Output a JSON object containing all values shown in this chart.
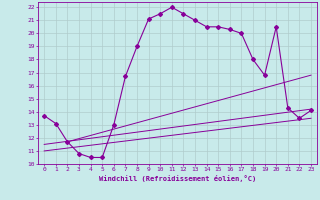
{
  "xlabel": "Windchill (Refroidissement éolien,°C)",
  "background_color": "#c8eaea",
  "grid_color": "#b0cccc",
  "line_color": "#880099",
  "xlim": [
    -0.5,
    23.5
  ],
  "ylim": [
    10,
    22.4
  ],
  "xticks": [
    0,
    1,
    2,
    3,
    4,
    5,
    6,
    7,
    8,
    9,
    10,
    11,
    12,
    13,
    14,
    15,
    16,
    17,
    18,
    19,
    20,
    21,
    22,
    23
  ],
  "yticks": [
    10,
    11,
    12,
    13,
    14,
    15,
    16,
    17,
    18,
    19,
    20,
    21,
    22
  ],
  "curve_x": [
    0,
    1,
    2,
    3,
    4,
    5,
    6,
    7,
    8,
    9,
    10,
    11,
    12,
    13,
    14,
    15,
    16,
    17,
    18,
    19,
    20,
    21,
    22,
    23
  ],
  "curve_y": [
    13.7,
    13.1,
    11.7,
    10.8,
    10.5,
    10.5,
    13.0,
    16.7,
    19.0,
    21.1,
    21.5,
    22.0,
    21.5,
    21.0,
    20.5,
    20.5,
    20.3,
    20.0,
    18.0,
    16.8,
    20.5,
    14.3,
    13.5,
    14.1
  ],
  "line1_x": [
    0,
    23
  ],
  "line1_y": [
    11.5,
    14.2
  ],
  "line2_x": [
    0,
    23
  ],
  "line2_y": [
    11.0,
    13.5
  ],
  "line3_x": [
    2,
    23
  ],
  "line3_y": [
    11.7,
    16.8
  ]
}
